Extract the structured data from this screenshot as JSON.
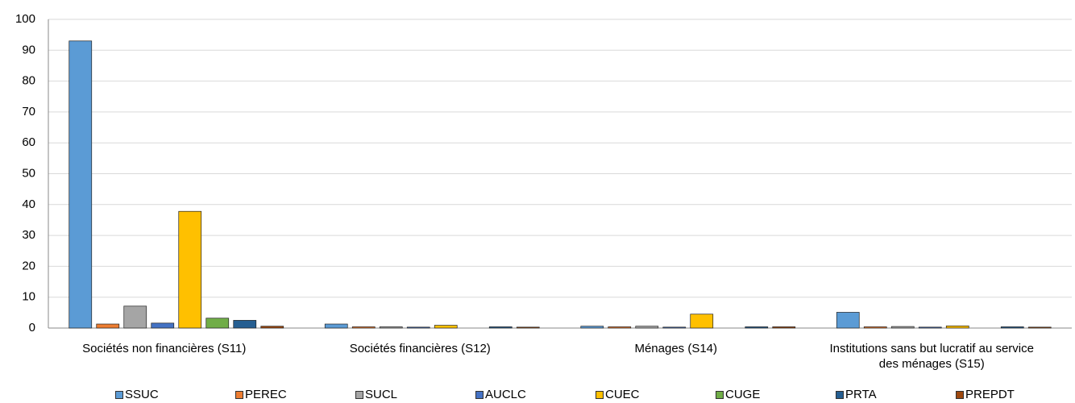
{
  "chart_data": {
    "type": "bar",
    "categories": [
      "Sociétés non financières (S11)",
      "Sociétés financières (S12)",
      "Ménages (S14)",
      "Institutions sans but lucratif au service des ménages (S15)"
    ],
    "series": [
      {
        "name": "SSUC",
        "color": "#5b9bd5",
        "values": [
          93,
          1.3,
          0.6,
          5.1
        ]
      },
      {
        "name": "PEREC",
        "color": "#ed7d31",
        "values": [
          1.3,
          0.4,
          0.4,
          0.4
        ]
      },
      {
        "name": "SUCL",
        "color": "#a5a5a5",
        "values": [
          7.1,
          0.4,
          0.6,
          0.5
        ]
      },
      {
        "name": "AUCLC",
        "color": "#4472c4",
        "values": [
          1.6,
          0.3,
          0.3,
          0.3
        ]
      },
      {
        "name": "CUEC",
        "color": "#ffc000",
        "values": [
          37.8,
          0.9,
          4.5,
          0.7
        ]
      },
      {
        "name": "CUGE",
        "color": "#70ad47",
        "values": [
          3.2,
          0,
          0,
          0
        ]
      },
      {
        "name": "PRTA",
        "color": "#255e91",
        "values": [
          2.5,
          0.4,
          0.4,
          0.4
        ]
      },
      {
        "name": "PREPDT",
        "color": "#9e480e",
        "values": [
          0.6,
          0.3,
          0.4,
          0.3
        ]
      }
    ],
    "ylim": [
      0,
      100
    ],
    "yticks": [
      0,
      10,
      20,
      30,
      40,
      50,
      60,
      70,
      80,
      90,
      100
    ],
    "grid": true,
    "legend": "bottom"
  }
}
